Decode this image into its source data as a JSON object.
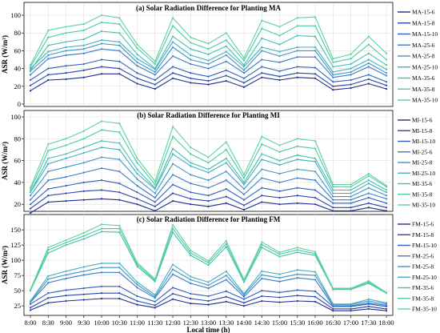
{
  "chart_data": [
    {
      "type": "line",
      "title": "(a) Solar Radiation Difference for Planting MA",
      "ylabel": "ASR (W/m²)",
      "xlabel": "",
      "ylim": [
        0,
        100
      ],
      "yticks": [
        0,
        20,
        40,
        60,
        80,
        100
      ],
      "x": [
        "8:00",
        "8:30",
        "9:00",
        "9:30",
        "10:00",
        "10:30",
        "11:00",
        "11:30",
        "12:00",
        "12:30",
        "13:00",
        "13:30",
        "14:00",
        "14:30",
        "15:00",
        "15:30",
        "16:00",
        "16:30",
        "17:00",
        "17:30",
        "18:00"
      ],
      "legend_position": "right",
      "grid": true,
      "series": [
        {
          "name": "MA-15-6",
          "values": [
            15,
            27,
            28,
            30,
            34,
            34,
            23,
            17,
            29,
            24,
            22,
            26,
            19,
            30,
            27,
            30,
            29,
            16,
            18,
            23,
            17
          ]
        },
        {
          "name": "MA-15-8",
          "values": [
            21,
            33,
            35,
            38,
            42,
            40,
            29,
            22,
            35,
            29,
            26,
            32,
            24,
            35,
            31,
            35,
            34,
            20,
            22,
            28,
            21
          ]
        },
        {
          "name": "MA-15-10",
          "values": [
            27,
            40,
            43,
            45,
            50,
            48,
            35,
            27,
            42,
            35,
            31,
            38,
            29,
            42,
            37,
            42,
            41,
            25,
            27,
            33,
            25
          ]
        },
        {
          "name": "MA-25-6",
          "values": [
            33,
            51,
            55,
            57,
            62,
            60,
            43,
            33,
            54,
            45,
            40,
            48,
            35,
            50,
            47,
            53,
            53,
            30,
            33,
            42,
            32
          ]
        },
        {
          "name": "MA-25-8",
          "values": [
            37,
            55,
            60,
            62,
            68,
            66,
            47,
            36,
            64,
            50,
            45,
            55,
            38,
            60,
            54,
            60,
            60,
            33,
            36,
            46,
            35
          ]
        },
        {
          "name": "MA-25-10",
          "values": [
            40,
            59,
            64,
            66,
            72,
            70,
            51,
            39,
            70,
            55,
            49,
            59,
            42,
            64,
            59,
            64,
            64,
            36,
            40,
            50,
            39
          ]
        },
        {
          "name": "MA-35-6",
          "values": [
            38,
            66,
            70,
            73,
            82,
            80,
            56,
            40,
            76,
            62,
            56,
            65,
            44,
            74,
            67,
            77,
            76,
            42,
            45,
            57,
            44
          ]
        },
        {
          "name": "MA-35-8",
          "values": [
            42,
            75,
            80,
            83,
            92,
            90,
            63,
            45,
            88,
            69,
            62,
            72,
            49,
            85,
            77,
            88,
            88,
            47,
            51,
            67,
            50
          ]
        },
        {
          "name": "MA-35-10",
          "values": [
            44,
            83,
            87,
            90,
            100,
            97,
            67,
            48,
            97,
            75,
            68,
            80,
            52,
            94,
            87,
            97,
            98,
            51,
            56,
            76,
            57
          ]
        }
      ]
    },
    {
      "type": "line",
      "title": "(b) Solar Radiation Difference for Planting MI",
      "ylabel": "ASR (W/m²)",
      "xlabel": "",
      "ylim": [
        15,
        100
      ],
      "yticks": [
        20,
        40,
        60,
        80,
        100
      ],
      "x": [
        "8:00",
        "8:30",
        "9:00",
        "9:30",
        "10:00",
        "10:30",
        "11:00",
        "11:30",
        "12:00",
        "12:30",
        "13:00",
        "13:30",
        "14:00",
        "14:30",
        "15:00",
        "15:30",
        "16:00",
        "16:30",
        "17:00",
        "17:30",
        "18:00"
      ],
      "legend_position": "right",
      "grid": true,
      "series": [
        {
          "name": "MI-15-6",
          "values": [
            12,
            22,
            23,
            24,
            25,
            24,
            20,
            14,
            23,
            20,
            18,
            21,
            15,
            22,
            20,
            21,
            20,
            14,
            14,
            17,
            14
          ]
        },
        {
          "name": "MI-15-8",
          "values": [
            16,
            28,
            30,
            32,
            33,
            31,
            25,
            18,
            30,
            25,
            23,
            27,
            19,
            28,
            26,
            28,
            26,
            17,
            17,
            21,
            17
          ]
        },
        {
          "name": "MI-15-10",
          "values": [
            20,
            34,
            37,
            40,
            42,
            39,
            31,
            22,
            38,
            31,
            28,
            34,
            24,
            35,
            32,
            35,
            33,
            21,
            21,
            26,
            21
          ]
        },
        {
          "name": "MI-25-6",
          "values": [
            24,
            42,
            45,
            49,
            53,
            50,
            37,
            26,
            47,
            39,
            35,
            42,
            29,
            44,
            40,
            44,
            42,
            24,
            24,
            30,
            25
          ]
        },
        {
          "name": "MI-25-8",
          "values": [
            28,
            50,
            54,
            58,
            63,
            61,
            43,
            30,
            57,
            47,
            42,
            50,
            34,
            52,
            48,
            52,
            50,
            27,
            27,
            35,
            28
          ]
        },
        {
          "name": "MI-25-10",
          "values": [
            31,
            57,
            62,
            67,
            72,
            70,
            48,
            34,
            66,
            55,
            49,
            58,
            38,
            61,
            56,
            61,
            59,
            30,
            30,
            39,
            31
          ]
        },
        {
          "name": "MI-35-6",
          "values": [
            31,
            62,
            66,
            72,
            78,
            76,
            52,
            35,
            71,
            58,
            52,
            62,
            40,
            66,
            60,
            65,
            62,
            33,
            33,
            42,
            33
          ]
        },
        {
          "name": "MI-35-8",
          "values": [
            33,
            69,
            74,
            80,
            88,
            86,
            58,
            38,
            82,
            66,
            58,
            70,
            44,
            75,
            68,
            73,
            71,
            36,
            36,
            46,
            36
          ]
        },
        {
          "name": "MI-35-10",
          "values": [
            35,
            75,
            80,
            87,
            96,
            94,
            62,
            41,
            91,
            72,
            63,
            77,
            47,
            82,
            74,
            80,
            78,
            38,
            38,
            48,
            37
          ]
        }
      ]
    },
    {
      "type": "line",
      "title": "(c) Solar Radiation Difference for Planting FM",
      "ylabel": "ASR (W/m²)",
      "xlabel": "Local time (h)",
      "ylim": [
        12,
        162
      ],
      "yticks": [
        25,
        50,
        75,
        100,
        125,
        150
      ],
      "x": [
        "8:00",
        "8:30",
        "9:00",
        "9:30",
        "10:00",
        "10:30",
        "11:00",
        "11:30",
        "12:00",
        "12:30",
        "13:00",
        "13:30",
        "14:00",
        "14:30",
        "15:00",
        "15:30",
        "16:00",
        "16:30",
        "17:00",
        "17:30",
        "18:00"
      ],
      "legend_position": "right",
      "grid": true,
      "series": [
        {
          "name": "FM-15-6",
          "values": [
            18,
            30,
            33,
            35,
            37,
            37,
            27,
            22,
            36,
            29,
            27,
            32,
            25,
            33,
            31,
            33,
            32,
            17,
            17,
            20,
            17
          ]
        },
        {
          "name": "FM-15-8",
          "values": [
            22,
            38,
            42,
            44,
            46,
            46,
            33,
            26,
            45,
            37,
            33,
            40,
            30,
            41,
            39,
            42,
            40,
            20,
            20,
            24,
            20
          ]
        },
        {
          "name": "FM-15-10",
          "values": [
            28,
            46,
            51,
            54,
            57,
            57,
            41,
            32,
            55,
            45,
            41,
            49,
            36,
            50,
            47,
            51,
            49,
            24,
            24,
            28,
            24
          ]
        },
        {
          "name": "FM-25-6",
          "values": [
            31,
            63,
            70,
            76,
            80,
            80,
            55,
            38,
            77,
            62,
            54,
            68,
            40,
            70,
            65,
            71,
            68,
            25,
            25,
            30,
            26
          ]
        },
        {
          "name": "FM-25-8",
          "values": [
            32,
            69,
            76,
            82,
            88,
            88,
            60,
            40,
            85,
            68,
            59,
            75,
            43,
            76,
            71,
            77,
            75,
            27,
            27,
            33,
            28
          ]
        },
        {
          "name": "FM-25-10",
          "values": [
            33,
            74,
            82,
            89,
            95,
            95,
            64,
            43,
            93,
            73,
            64,
            82,
            45,
            82,
            77,
            84,
            81,
            28,
            28,
            36,
            30
          ]
        },
        {
          "name": "FM-35-6",
          "values": [
            50,
            112,
            125,
            135,
            147,
            146,
            90,
            65,
            146,
            108,
            92,
            122,
            64,
            121,
            106,
            113,
            108,
            52,
            52,
            62,
            46
          ]
        },
        {
          "name": "FM-35-8",
          "values": [
            51,
            117,
            129,
            140,
            152,
            152,
            93,
            67,
            152,
            112,
            96,
            127,
            66,
            126,
            110,
            117,
            111,
            53,
            53,
            64,
            46
          ]
        },
        {
          "name": "FM-35-10",
          "values": [
            52,
            121,
            133,
            145,
            159,
            157,
            96,
            69,
            158,
            116,
            99,
            132,
            68,
            130,
            113,
            121,
            114,
            54,
            54,
            66,
            47
          ]
        }
      ]
    }
  ],
  "colors": [
    "#1f2e8c",
    "#2a45a8",
    "#2f5fbf",
    "#3a7bc4",
    "#3f95c4",
    "#44aec2",
    "#43bfb4",
    "#4bcba5",
    "#5fd39c"
  ]
}
